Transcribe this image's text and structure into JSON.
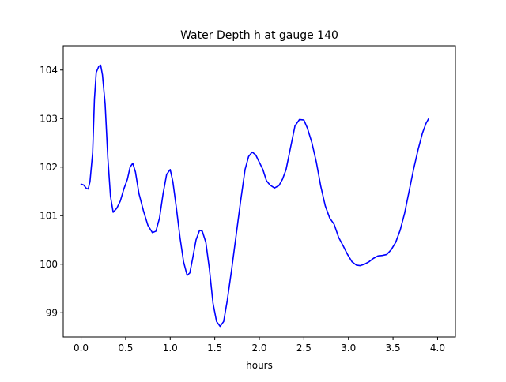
{
  "chart_data": {
    "type": "line",
    "title": "Water Depth h at gauge 140",
    "xlabel": "hours",
    "ylabel": "",
    "xlim": [
      -0.2,
      4.2
    ],
    "ylim": [
      98.5,
      104.5
    ],
    "xticks": [
      0.0,
      0.5,
      1.0,
      1.5,
      2.0,
      2.5,
      3.0,
      3.5,
      4.0
    ],
    "xtick_labels": [
      "0.0",
      "0.5",
      "1.0",
      "1.5",
      "2.0",
      "2.5",
      "3.0",
      "3.5",
      "4.0"
    ],
    "yticks": [
      99,
      100,
      101,
      102,
      103,
      104
    ],
    "ytick_labels": [
      "99",
      "100",
      "101",
      "102",
      "103",
      "104"
    ],
    "grid": false,
    "series": [
      {
        "color": "#0000ff",
        "points": [
          [
            0.0,
            101.65
          ],
          [
            0.03,
            101.63
          ],
          [
            0.06,
            101.56
          ],
          [
            0.08,
            101.55
          ],
          [
            0.1,
            101.7
          ],
          [
            0.13,
            102.3
          ],
          [
            0.15,
            103.4
          ],
          [
            0.17,
            103.95
          ],
          [
            0.2,
            104.08
          ],
          [
            0.22,
            104.1
          ],
          [
            0.24,
            103.9
          ],
          [
            0.27,
            103.3
          ],
          [
            0.3,
            102.2
          ],
          [
            0.33,
            101.4
          ],
          [
            0.36,
            101.07
          ],
          [
            0.4,
            101.15
          ],
          [
            0.44,
            101.3
          ],
          [
            0.48,
            101.55
          ],
          [
            0.52,
            101.75
          ],
          [
            0.55,
            102.0
          ],
          [
            0.58,
            102.08
          ],
          [
            0.61,
            101.9
          ],
          [
            0.65,
            101.45
          ],
          [
            0.7,
            101.1
          ],
          [
            0.75,
            100.8
          ],
          [
            0.8,
            100.65
          ],
          [
            0.84,
            100.68
          ],
          [
            0.88,
            100.95
          ],
          [
            0.92,
            101.45
          ],
          [
            0.96,
            101.85
          ],
          [
            1.0,
            101.95
          ],
          [
            1.03,
            101.7
          ],
          [
            1.07,
            101.15
          ],
          [
            1.11,
            100.55
          ],
          [
            1.15,
            100.05
          ],
          [
            1.19,
            99.77
          ],
          [
            1.22,
            99.82
          ],
          [
            1.25,
            100.1
          ],
          [
            1.29,
            100.5
          ],
          [
            1.33,
            100.7
          ],
          [
            1.36,
            100.68
          ],
          [
            1.4,
            100.45
          ],
          [
            1.44,
            99.9
          ],
          [
            1.48,
            99.2
          ],
          [
            1.52,
            98.82
          ],
          [
            1.56,
            98.72
          ],
          [
            1.6,
            98.82
          ],
          [
            1.64,
            99.25
          ],
          [
            1.69,
            99.9
          ],
          [
            1.74,
            100.6
          ],
          [
            1.79,
            101.3
          ],
          [
            1.84,
            101.95
          ],
          [
            1.88,
            102.22
          ],
          [
            1.92,
            102.31
          ],
          [
            1.96,
            102.25
          ],
          [
            2.0,
            102.1
          ],
          [
            2.04,
            101.95
          ],
          [
            2.08,
            101.72
          ],
          [
            2.12,
            101.63
          ],
          [
            2.17,
            101.57
          ],
          [
            2.22,
            101.62
          ],
          [
            2.26,
            101.75
          ],
          [
            2.3,
            101.95
          ],
          [
            2.35,
            102.4
          ],
          [
            2.4,
            102.85
          ],
          [
            2.45,
            102.98
          ],
          [
            2.5,
            102.97
          ],
          [
            2.54,
            102.8
          ],
          [
            2.59,
            102.5
          ],
          [
            2.64,
            102.1
          ],
          [
            2.69,
            101.6
          ],
          [
            2.74,
            101.2
          ],
          [
            2.79,
            100.95
          ],
          [
            2.84,
            100.82
          ],
          [
            2.89,
            100.55
          ],
          [
            2.94,
            100.38
          ],
          [
            2.99,
            100.2
          ],
          [
            3.04,
            100.05
          ],
          [
            3.09,
            99.98
          ],
          [
            3.13,
            99.97
          ],
          [
            3.18,
            100.0
          ],
          [
            3.23,
            100.05
          ],
          [
            3.28,
            100.12
          ],
          [
            3.33,
            100.17
          ],
          [
            3.38,
            100.18
          ],
          [
            3.43,
            100.2
          ],
          [
            3.48,
            100.3
          ],
          [
            3.53,
            100.45
          ],
          [
            3.58,
            100.7
          ],
          [
            3.63,
            101.05
          ],
          [
            3.68,
            101.5
          ],
          [
            3.73,
            101.95
          ],
          [
            3.78,
            102.35
          ],
          [
            3.83,
            102.7
          ],
          [
            3.87,
            102.9
          ],
          [
            3.9,
            103.0
          ]
        ]
      }
    ]
  }
}
